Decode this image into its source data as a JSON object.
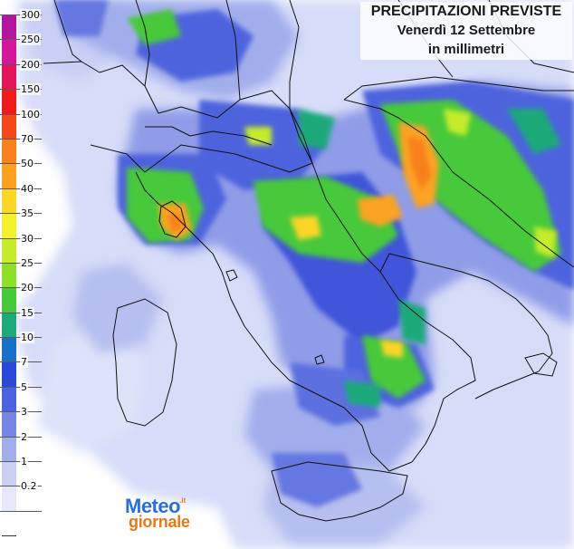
{
  "title": {
    "line1": "PRECIPITAZIONI PREVISTE",
    "line2": "Venerdì 12 Settembre",
    "line3": "in millimetri"
  },
  "legend": {
    "items": [
      {
        "label": "300",
        "color": "#b2169e"
      },
      {
        "label": "250",
        "color": "#d3169a"
      },
      {
        "label": "200",
        "color": "#e0165a"
      },
      {
        "label": "150",
        "color": "#ef1b1b"
      },
      {
        "label": "100",
        "color": "#f4481a"
      },
      {
        "label": "70",
        "color": "#f8801e"
      },
      {
        "label": "50",
        "color": "#fba320"
      },
      {
        "label": "40",
        "color": "#fcd527"
      },
      {
        "label": "35",
        "color": "#f3f02d"
      },
      {
        "label": "30",
        "color": "#c5ec2c"
      },
      {
        "label": "25",
        "color": "#8ddf2a"
      },
      {
        "label": "20",
        "color": "#46c93b"
      },
      {
        "label": "15",
        "color": "#1fa97a"
      },
      {
        "label": "10",
        "color": "#1870c8"
      },
      {
        "label": "7",
        "color": "#2a49d8"
      },
      {
        "label": "5",
        "color": "#4d63dd"
      },
      {
        "label": "3",
        "color": "#7786e3"
      },
      {
        "label": "2",
        "color": "#a2aeec"
      },
      {
        "label": "1",
        "color": "#c9d0f4"
      },
      {
        "label": "0.2",
        "color": "#e6e9fb"
      },
      {
        "label": "",
        "color": "#ffffff"
      }
    ]
  },
  "logo": {
    "word1": "Meteo",
    "word2": "giornale",
    "superscript": ".it"
  }
}
